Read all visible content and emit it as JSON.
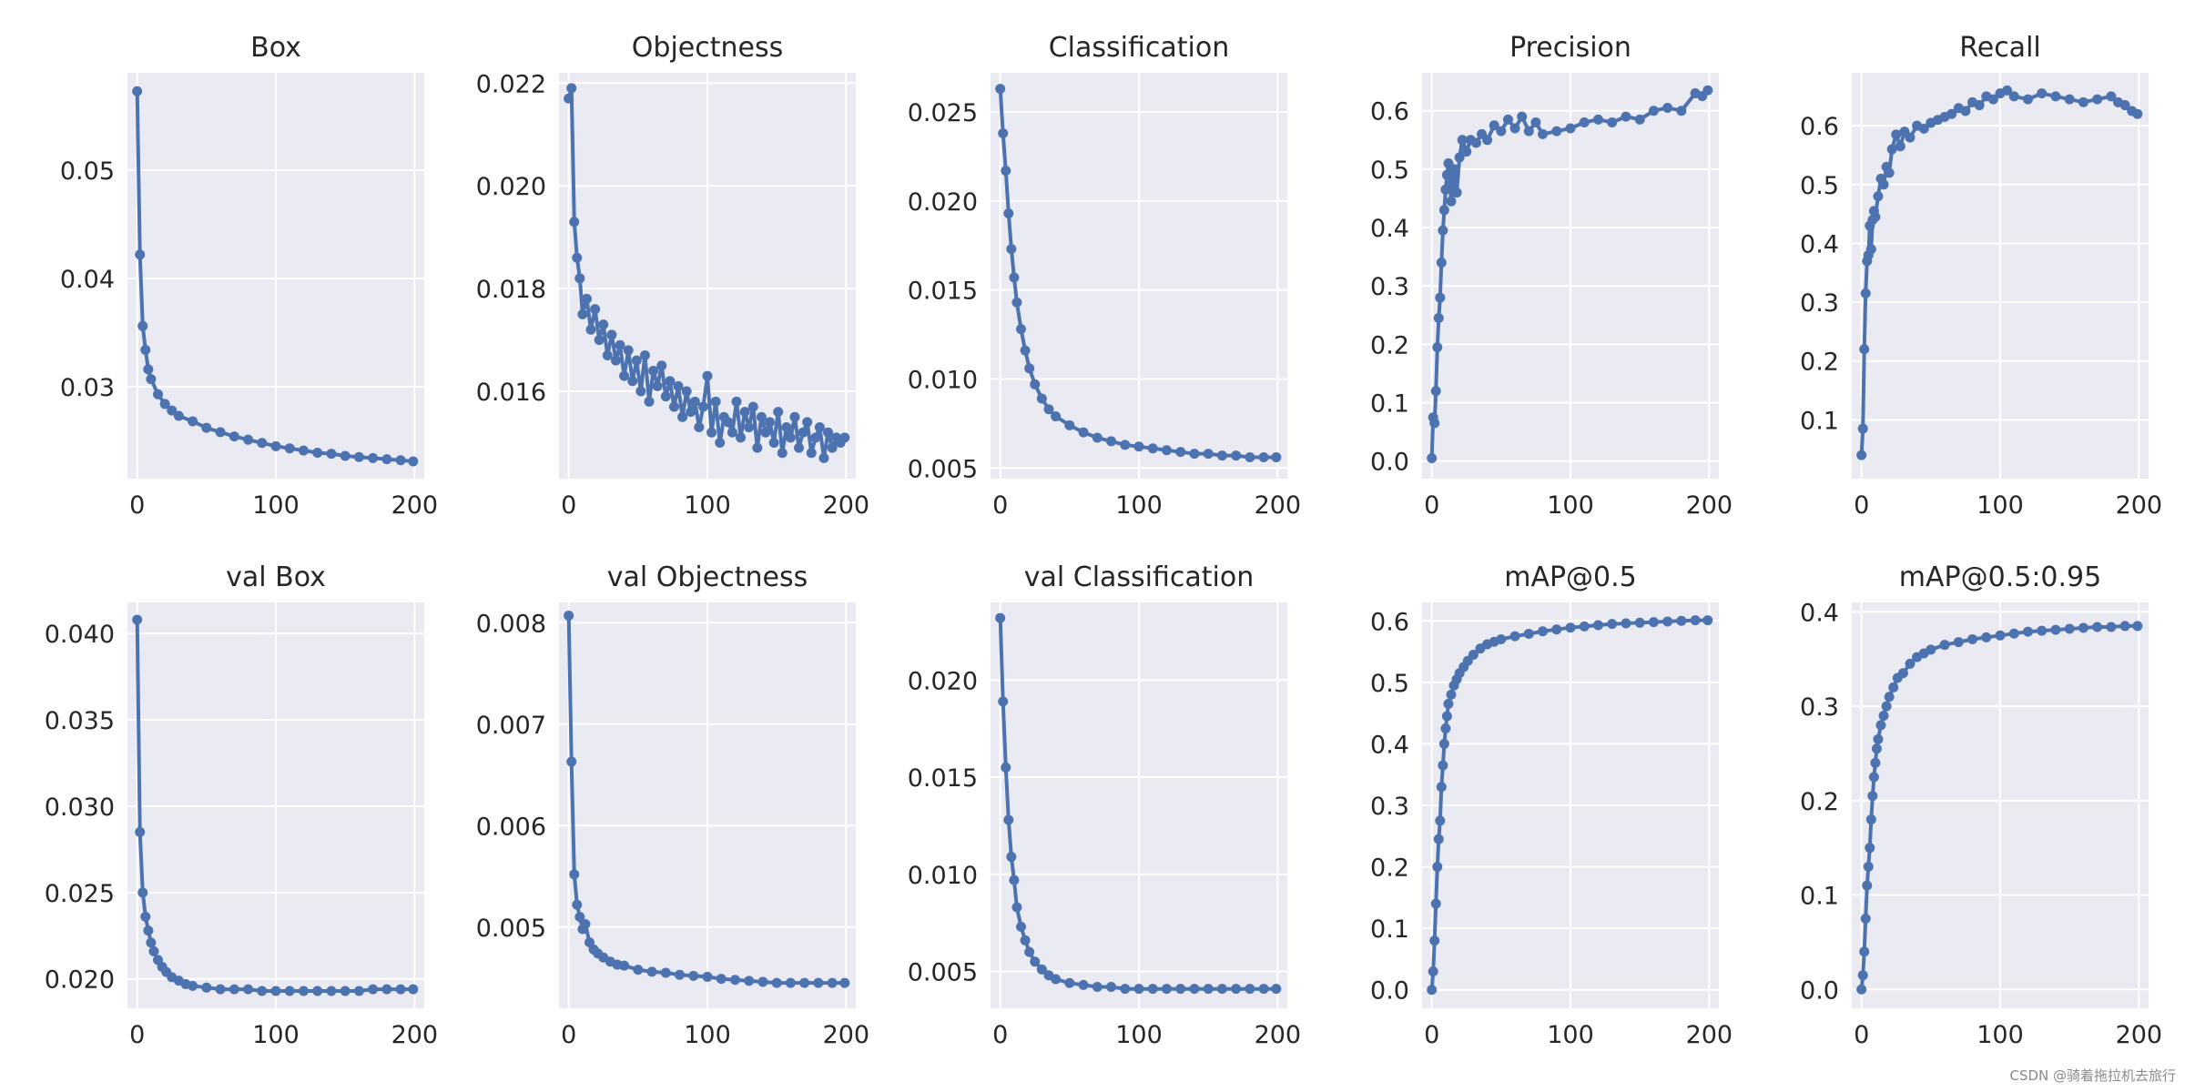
{
  "figure": {
    "watermark": "CSDN @骑着拖拉机去旅行",
    "colors": {
      "series": "#4c72b0",
      "plot_bg": "#eaeaf2",
      "grid": "#ffffff",
      "text": "#262626"
    }
  },
  "chart_data": [
    {
      "type": "line",
      "title": "Box",
      "xlabel": "",
      "ylabel": "",
      "xlim": [
        -7,
        207
      ],
      "ylim": [
        0.0215,
        0.059
      ],
      "xticks": [
        0,
        100,
        200
      ],
      "yticks": [
        0.03,
        0.04,
        0.05
      ],
      "ytick_labels": [
        "0.03",
        "0.04",
        "0.05"
      ],
      "series": [
        {
          "x": [
            0,
            2,
            4,
            6,
            8,
            10,
            15,
            20,
            25,
            30,
            40,
            50,
            60,
            70,
            80,
            90,
            100,
            110,
            120,
            130,
            140,
            150,
            160,
            170,
            180,
            190,
            199
          ],
          "y": [
            0.0573,
            0.0422,
            0.0356,
            0.0334,
            0.0316,
            0.0307,
            0.0293,
            0.0284,
            0.0278,
            0.0273,
            0.0268,
            0.0262,
            0.0258,
            0.0254,
            0.0251,
            0.0248,
            0.0245,
            0.0243,
            0.0241,
            0.0239,
            0.0238,
            0.0236,
            0.0235,
            0.0234,
            0.0233,
            0.0232,
            0.0231
          ]
        }
      ]
    },
    {
      "type": "line",
      "title": "Objectness",
      "xlabel": "",
      "ylabel": "",
      "xlim": [
        -7,
        207
      ],
      "ylim": [
        0.0143,
        0.0222
      ],
      "xticks": [
        0,
        100,
        200
      ],
      "yticks": [
        0.016,
        0.018,
        0.02,
        0.022
      ],
      "ytick_labels": [
        "0.016",
        "0.018",
        "0.020",
        "0.022"
      ],
      "series": [
        {
          "x": [
            0,
            2,
            4,
            6,
            8,
            10,
            13,
            16,
            19,
            22,
            25,
            28,
            31,
            34,
            37,
            40,
            43,
            46,
            49,
            52,
            55,
            58,
            61,
            64,
            67,
            70,
            73,
            76,
            79,
            82,
            85,
            88,
            91,
            94,
            97,
            100,
            103,
            106,
            109,
            112,
            115,
            118,
            121,
            124,
            127,
            130,
            133,
            136,
            139,
            142,
            145,
            148,
            151,
            154,
            157,
            160,
            163,
            166,
            169,
            172,
            175,
            178,
            181,
            184,
            187,
            190,
            193,
            196,
            199
          ],
          "y": [
            0.0217,
            0.0219,
            0.0193,
            0.0186,
            0.0182,
            0.0175,
            0.0178,
            0.0172,
            0.0176,
            0.017,
            0.0173,
            0.0167,
            0.0171,
            0.0166,
            0.0169,
            0.0163,
            0.0168,
            0.0162,
            0.0166,
            0.016,
            0.0167,
            0.0158,
            0.0164,
            0.0161,
            0.0165,
            0.0159,
            0.0162,
            0.0157,
            0.0161,
            0.0155,
            0.016,
            0.0156,
            0.0158,
            0.0153,
            0.0157,
            0.0163,
            0.0152,
            0.0158,
            0.015,
            0.0155,
            0.0154,
            0.0152,
            0.0158,
            0.0151,
            0.0156,
            0.0153,
            0.0157,
            0.0149,
            0.0155,
            0.0152,
            0.0154,
            0.015,
            0.0156,
            0.0148,
            0.0153,
            0.0151,
            0.0155,
            0.0149,
            0.0152,
            0.0154,
            0.0148,
            0.0151,
            0.0153,
            0.0147,
            0.0152,
            0.0149,
            0.0151,
            0.015,
            0.0151
          ]
        }
      ]
    },
    {
      "type": "line",
      "title": "Classification",
      "xlabel": "",
      "ylabel": "",
      "xlim": [
        -7,
        207
      ],
      "ylim": [
        0.0044,
        0.0272
      ],
      "xticks": [
        0,
        100,
        200
      ],
      "yticks": [
        0.005,
        0.01,
        0.015,
        0.02,
        0.025
      ],
      "ytick_labels": [
        "0.005",
        "0.010",
        "0.015",
        "0.020",
        "0.025"
      ],
      "series": [
        {
          "x": [
            0,
            2,
            4,
            6,
            8,
            10,
            12,
            15,
            18,
            21,
            25,
            30,
            35,
            40,
            50,
            60,
            70,
            80,
            90,
            100,
            110,
            120,
            130,
            140,
            150,
            160,
            170,
            180,
            190,
            199
          ],
          "y": [
            0.0263,
            0.0238,
            0.0217,
            0.0193,
            0.0173,
            0.0157,
            0.0143,
            0.0128,
            0.0116,
            0.0106,
            0.0097,
            0.0089,
            0.0083,
            0.0079,
            0.0074,
            0.007,
            0.0067,
            0.0065,
            0.0063,
            0.0062,
            0.0061,
            0.006,
            0.0059,
            0.0058,
            0.0058,
            0.0057,
            0.0057,
            0.0056,
            0.0056,
            0.0056
          ]
        }
      ]
    },
    {
      "type": "line",
      "title": "Precision",
      "xlabel": "",
      "ylabel": "",
      "xlim": [
        -7,
        207
      ],
      "ylim": [
        -0.03,
        0.665
      ],
      "xticks": [
        0,
        100,
        200
      ],
      "yticks": [
        0.0,
        0.1,
        0.2,
        0.3,
        0.4,
        0.5,
        0.6
      ],
      "ytick_labels": [
        "0.0",
        "0.1",
        "0.2",
        "0.3",
        "0.4",
        "0.5",
        "0.6"
      ],
      "series": [
        {
          "x": [
            0,
            1,
            2,
            3,
            4,
            5,
            6,
            7,
            8,
            9,
            10,
            11,
            12,
            14,
            16,
            18,
            20,
            22,
            25,
            28,
            32,
            36,
            40,
            45,
            50,
            55,
            60,
            65,
            70,
            75,
            80,
            90,
            100,
            110,
            120,
            130,
            140,
            150,
            160,
            170,
            180,
            190,
            195,
            199
          ],
          "y": [
            0.005,
            0.075,
            0.065,
            0.12,
            0.195,
            0.245,
            0.28,
            0.34,
            0.395,
            0.43,
            0.465,
            0.49,
            0.51,
            0.445,
            0.5,
            0.46,
            0.52,
            0.55,
            0.53,
            0.55,
            0.545,
            0.56,
            0.55,
            0.575,
            0.565,
            0.585,
            0.57,
            0.59,
            0.565,
            0.58,
            0.56,
            0.565,
            0.57,
            0.58,
            0.585,
            0.58,
            0.59,
            0.585,
            0.6,
            0.605,
            0.6,
            0.63,
            0.625,
            0.635
          ]
        }
      ]
    },
    {
      "type": "line",
      "title": "Recall",
      "xlabel": "",
      "ylabel": "",
      "xlim": [
        -7,
        207
      ],
      "ylim": [
        0.0,
        0.69
      ],
      "xticks": [
        0,
        100,
        200
      ],
      "yticks": [
        0.1,
        0.2,
        0.3,
        0.4,
        0.5,
        0.6
      ],
      "ytick_labels": [
        "0.1",
        "0.2",
        "0.3",
        "0.4",
        "0.5",
        "0.6"
      ],
      "series": [
        {
          "x": [
            0,
            1,
            2,
            3,
            4,
            5,
            6,
            7,
            8,
            9,
            10,
            12,
            14,
            16,
            18,
            20,
            22,
            25,
            28,
            31,
            35,
            40,
            45,
            50,
            55,
            60,
            65,
            70,
            75,
            80,
            85,
            90,
            95,
            100,
            105,
            110,
            120,
            130,
            140,
            150,
            160,
            170,
            180,
            185,
            190,
            195,
            199
          ],
          "y": [
            0.04,
            0.085,
            0.22,
            0.315,
            0.37,
            0.38,
            0.43,
            0.39,
            0.44,
            0.455,
            0.445,
            0.48,
            0.51,
            0.5,
            0.53,
            0.52,
            0.56,
            0.585,
            0.565,
            0.59,
            0.58,
            0.6,
            0.595,
            0.605,
            0.61,
            0.615,
            0.62,
            0.63,
            0.625,
            0.64,
            0.635,
            0.65,
            0.645,
            0.655,
            0.66,
            0.65,
            0.645,
            0.655,
            0.65,
            0.645,
            0.64,
            0.645,
            0.65,
            0.64,
            0.635,
            0.625,
            0.62
          ]
        }
      ]
    },
    {
      "type": "line",
      "title": "val Box",
      "xlabel": "",
      "ylabel": "",
      "xlim": [
        -7,
        207
      ],
      "ylim": [
        0.0183,
        0.0418
      ],
      "xticks": [
        0,
        100,
        200
      ],
      "yticks": [
        0.02,
        0.025,
        0.03,
        0.035,
        0.04
      ],
      "ytick_labels": [
        "0.020",
        "0.025",
        "0.030",
        "0.035",
        "0.040"
      ],
      "series": [
        {
          "x": [
            0,
            2,
            4,
            6,
            8,
            10,
            12,
            15,
            18,
            21,
            25,
            30,
            35,
            40,
            50,
            60,
            70,
            80,
            90,
            100,
            110,
            120,
            130,
            140,
            150,
            160,
            170,
            180,
            190,
            199
          ],
          "y": [
            0.0408,
            0.0285,
            0.025,
            0.0236,
            0.0228,
            0.0221,
            0.0216,
            0.0211,
            0.0207,
            0.0204,
            0.0201,
            0.0199,
            0.0197,
            0.0196,
            0.0195,
            0.0194,
            0.0194,
            0.0194,
            0.0193,
            0.0193,
            0.0193,
            0.0193,
            0.0193,
            0.0193,
            0.0193,
            0.0193,
            0.0194,
            0.0194,
            0.0194,
            0.0194
          ]
        }
      ]
    },
    {
      "type": "line",
      "title": "val Objectness",
      "xlabel": "",
      "ylabel": "",
      "xlim": [
        -7,
        207
      ],
      "ylim": [
        0.0042,
        0.0082
      ],
      "xticks": [
        0,
        100,
        200
      ],
      "yticks": [
        0.005,
        0.006,
        0.007,
        0.008
      ],
      "ytick_labels": [
        "0.005",
        "0.006",
        "0.007",
        "0.008"
      ],
      "series": [
        {
          "x": [
            0,
            2,
            4,
            6,
            8,
            10,
            12,
            15,
            18,
            21,
            25,
            30,
            35,
            40,
            50,
            60,
            70,
            80,
            90,
            100,
            110,
            120,
            130,
            140,
            150,
            160,
            170,
            180,
            190,
            199
          ],
          "y": [
            0.00807,
            0.00663,
            0.00552,
            0.00522,
            0.0051,
            0.00498,
            0.00503,
            0.00485,
            0.00478,
            0.00474,
            0.0047,
            0.00466,
            0.00463,
            0.00462,
            0.00458,
            0.00456,
            0.00455,
            0.00453,
            0.00452,
            0.00451,
            0.00449,
            0.00448,
            0.00447,
            0.00446,
            0.00445,
            0.00445,
            0.00445,
            0.00445,
            0.00445,
            0.00445
          ]
        }
      ]
    },
    {
      "type": "line",
      "title": "val Classification",
      "xlabel": "",
      "ylabel": "",
      "xlim": [
        -7,
        207
      ],
      "ylim": [
        0.0031,
        0.024
      ],
      "xticks": [
        0,
        100,
        200
      ],
      "yticks": [
        0.005,
        0.01,
        0.015,
        0.02
      ],
      "ytick_labels": [
        "0.005",
        "0.010",
        "0.015",
        "0.020"
      ],
      "series": [
        {
          "x": [
            0,
            2,
            4,
            6,
            8,
            10,
            12,
            15,
            18,
            21,
            25,
            30,
            35,
            40,
            50,
            60,
            70,
            80,
            90,
            100,
            110,
            120,
            130,
            140,
            150,
            160,
            170,
            180,
            190,
            199
          ],
          "y": [
            0.0232,
            0.0189,
            0.0155,
            0.0128,
            0.0109,
            0.0097,
            0.0083,
            0.0073,
            0.0066,
            0.006,
            0.0055,
            0.0051,
            0.0048,
            0.0046,
            0.0044,
            0.0043,
            0.0042,
            0.0042,
            0.0041,
            0.0041,
            0.0041,
            0.0041,
            0.0041,
            0.0041,
            0.0041,
            0.0041,
            0.0041,
            0.0041,
            0.0041,
            0.0041
          ]
        }
      ]
    },
    {
      "type": "line",
      "title": "mAP@0.5",
      "xlabel": "",
      "ylabel": "",
      "xlim": [
        -7,
        207
      ],
      "ylim": [
        -0.03,
        0.63
      ],
      "xticks": [
        0,
        100,
        200
      ],
      "yticks": [
        0.0,
        0.1,
        0.2,
        0.3,
        0.4,
        0.5,
        0.6
      ],
      "ytick_labels": [
        "0.0",
        "0.1",
        "0.2",
        "0.3",
        "0.4",
        "0.5",
        "0.6"
      ],
      "series": [
        {
          "x": [
            0,
            1,
            2,
            3,
            4,
            5,
            6,
            7,
            8,
            9,
            10,
            11,
            12,
            14,
            16,
            18,
            20,
            23,
            26,
            30,
            35,
            40,
            45,
            50,
            60,
            70,
            80,
            90,
            100,
            110,
            120,
            130,
            140,
            150,
            160,
            170,
            180,
            190,
            199
          ],
          "y": [
            0.0,
            0.03,
            0.08,
            0.14,
            0.2,
            0.245,
            0.275,
            0.33,
            0.365,
            0.4,
            0.425,
            0.445,
            0.465,
            0.48,
            0.495,
            0.505,
            0.515,
            0.525,
            0.535,
            0.545,
            0.555,
            0.562,
            0.566,
            0.57,
            0.575,
            0.579,
            0.583,
            0.586,
            0.589,
            0.591,
            0.593,
            0.595,
            0.596,
            0.597,
            0.598,
            0.599,
            0.6,
            0.601,
            0.601
          ]
        }
      ]
    },
    {
      "type": "line",
      "title": "mAP@0.5:0.95",
      "xlabel": "",
      "ylabel": "",
      "xlim": [
        -7,
        207
      ],
      "ylim": [
        -0.02,
        0.41
      ],
      "xticks": [
        0,
        100,
        200
      ],
      "yticks": [
        0.0,
        0.1,
        0.2,
        0.3,
        0.4
      ],
      "ytick_labels": [
        "0.0",
        "0.1",
        "0.2",
        "0.3",
        "0.4"
      ],
      "series": [
        {
          "x": [
            0,
            1,
            2,
            3,
            4,
            5,
            6,
            7,
            8,
            9,
            10,
            11,
            12,
            14,
            16,
            18,
            20,
            23,
            26,
            30,
            35,
            40,
            45,
            50,
            60,
            70,
            80,
            90,
            100,
            110,
            120,
            130,
            140,
            150,
            160,
            170,
            180,
            190,
            199
          ],
          "y": [
            0.0,
            0.015,
            0.04,
            0.075,
            0.11,
            0.13,
            0.15,
            0.18,
            0.205,
            0.225,
            0.24,
            0.255,
            0.265,
            0.28,
            0.29,
            0.3,
            0.31,
            0.32,
            0.33,
            0.335,
            0.345,
            0.352,
            0.356,
            0.36,
            0.365,
            0.368,
            0.371,
            0.373,
            0.375,
            0.377,
            0.379,
            0.38,
            0.381,
            0.382,
            0.383,
            0.384,
            0.384,
            0.385,
            0.385
          ]
        }
      ]
    }
  ]
}
